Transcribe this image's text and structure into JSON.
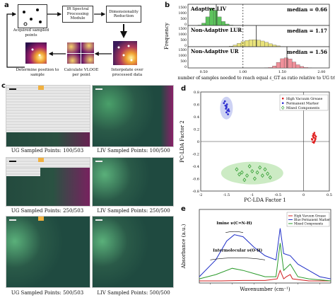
{
  "panel_a": {
    "label": "a",
    "boxes": {
      "ir_module": "IR Spectral Processing Module",
      "dim_reduction": "Dimensionality Reduction"
    },
    "captions": {
      "acquired": "Acquired sampled points",
      "interpolate": "Interpolate over processed data",
      "calculate": "Calculate VLOOE per point",
      "determine": "Determine position to sample"
    }
  },
  "panel_b": {
    "label": "b",
    "ylabel": "Frequency",
    "xlabel": "number of samples needed to reach equal ε_GT as ratio relative to UG trial",
    "xtick_labels": [
      "0.50",
      "1.00",
      "1.50",
      "2.00"
    ],
    "rows": [
      {
        "name": "Adaptive LIV",
        "median_text": "median = 0.66",
        "yticks": [
          "1500",
          "1000",
          "500",
          "0"
        ],
        "color": "#5cc45c"
      },
      {
        "name": "Non-Adaptive LUR",
        "median_text": "median = 1.17",
        "yticks": [
          "1500",
          "1000",
          "500",
          "0"
        ],
        "color": "#e8e27a"
      },
      {
        "name": "Non-Adaptive UR",
        "median_text": "median = 1.56",
        "yticks": [
          "1500",
          "1000",
          "500",
          "0"
        ],
        "color": "#f0909a"
      }
    ]
  },
  "panel_c": {
    "label": "c",
    "captions": [
      "UG Sampled Points: 100/503",
      "LIV Sampled Points: 100/500",
      "UG Sampled Points: 250/503",
      "LIV Sampled Points: 250/500",
      "UG Sampled Points: 500/503",
      "LIV Sampled Points: 500/500"
    ]
  },
  "panel_d": {
    "label": "d",
    "xlabel": "PC-LDA Factor 1",
    "ylabel": "PC-LDA Factor 2",
    "xticks": [
      "-2",
      "-1.5",
      "-1",
      "-0.5",
      "0",
      "0.5"
    ],
    "yticks": [
      "0.8",
      "0.6",
      "0.4",
      "0.2",
      "0",
      "-0.2",
      "-0.4",
      "-0.6",
      "-0.8"
    ],
    "legend": [
      "High Vacuum Grease",
      "Permanent Marker",
      "Mixed Components"
    ],
    "colors": {
      "grease": "#e02020",
      "marker": "#3030d0",
      "mixed": "#2a9a2a"
    }
  },
  "panel_e": {
    "label": "e",
    "xlabel": "Wavenumber (cm⁻¹)",
    "ylabel": "Absorbance (a.u.)",
    "annotation_imine": "Imine ν(C=N-H)",
    "annotation_inter": "Intermolecular ν(O-H)",
    "legend": [
      "High Vacuum Grease",
      "Blue Permanent Marker",
      "Mixed Components"
    ],
    "colors": {
      "grease": "#d02020",
      "marker": "#2030c8",
      "mixed": "#2a9a2a"
    }
  },
  "chart_data": [
    {
      "type": "bar",
      "title": "",
      "xlabel": "number of samples needed to reach equal ε_GT as ratio relative to UG trial",
      "ylabel": "Frequency",
      "xlim": [
        0.3,
        2.1
      ],
      "ylim": [
        0,
        1500
      ],
      "series": [
        {
          "name": "Adaptive LIV",
          "median": 0.66,
          "x": [
            0.4,
            0.45,
            0.5,
            0.55,
            0.6,
            0.65,
            0.7,
            0.75,
            0.8,
            0.85,
            0.9
          ],
          "values": [
            0,
            30,
            180,
            650,
            1300,
            1150,
            650,
            300,
            110,
            30,
            0
          ]
        },
        {
          "name": "Non-Adaptive LUR",
          "median": 1.17,
          "x": [
            0.8,
            0.85,
            0.9,
            0.95,
            1.0,
            1.05,
            1.1,
            1.15,
            1.2,
            1.25,
            1.3,
            1.35,
            1.4,
            1.45,
            1.5,
            1.55
          ],
          "values": [
            10,
            40,
            120,
            250,
            380,
            470,
            520,
            530,
            500,
            430,
            330,
            220,
            130,
            60,
            20,
            0
          ]
        },
        {
          "name": "Non-Adaptive UR",
          "median": 1.56,
          "x": [
            1.3,
            1.35,
            1.4,
            1.45,
            1.5,
            1.55,
            1.6,
            1.65,
            1.7,
            1.75,
            1.8,
            1.85,
            1.9
          ],
          "values": [
            10,
            40,
            150,
            420,
            700,
            760,
            680,
            450,
            240,
            110,
            40,
            10,
            0
          ]
        }
      ]
    },
    {
      "type": "scatter",
      "title": "",
      "xlabel": "PC-LDA Factor 1",
      "ylabel": "PC-LDA Factor 2",
      "xlim": [
        -2,
        0.5
      ],
      "ylim": [
        -0.8,
        0.8
      ],
      "series": [
        {
          "name": "High Vacuum Grease",
          "x": [
            0.17,
            0.2,
            0.22,
            0.18,
            0.21,
            0.23,
            0.19,
            0.2,
            0.24,
            0.16,
            0.22,
            0.19,
            0.21,
            0.18,
            0.23,
            0.2
          ],
          "y": [
            0.03,
            0.06,
            0.02,
            0.09,
            0.0,
            0.05,
            0.12,
            -0.02,
            0.08,
            0.04,
            0.1,
            0.07,
            0.14,
            -0.01,
            0.04,
            0.11
          ]
        },
        {
          "name": "Permanent Marker",
          "x": [
            -1.55,
            -1.52,
            -1.5,
            -1.48,
            -1.5,
            -1.46,
            -1.53,
            -1.49,
            -1.47,
            -1.51,
            -1.45,
            -1.5
          ],
          "y": [
            0.62,
            0.58,
            0.55,
            0.5,
            0.47,
            0.52,
            0.65,
            0.6,
            0.44,
            0.53,
            0.49,
            0.57
          ]
        },
        {
          "name": "Mixed Components",
          "x": [
            -1.3,
            -1.2,
            -1.1,
            -1.05,
            -0.95,
            -0.9,
            -0.8,
            -0.75,
            -0.7,
            -1.15,
            -1.0,
            -0.85,
            -0.65,
            -1.25
          ],
          "y": [
            -0.45,
            -0.5,
            -0.55,
            -0.4,
            -0.6,
            -0.5,
            -0.55,
            -0.45,
            -0.52,
            -0.62,
            -0.48,
            -0.42,
            -0.58,
            -0.53
          ]
        }
      ]
    },
    {
      "type": "line",
      "title": "",
      "xlabel": "Wavenumber (cm⁻¹)",
      "ylabel": "Absorbance (a.u.)",
      "xlim": [
        3700,
        2500
      ],
      "ylim": [
        0,
        0.35
      ],
      "series": [
        {
          "name": "High Vacuum Grease",
          "x": [
            3700,
            3500,
            3300,
            3100,
            2990,
            2962,
            2930,
            2905,
            2870,
            2850,
            2700,
            2500
          ],
          "y": [
            0.01,
            0.01,
            0.012,
            0.012,
            0.02,
            0.06,
            0.02,
            0.03,
            0.04,
            0.02,
            0.01,
            0.01
          ]
        },
        {
          "name": "Blue Permanent Marker",
          "x": [
            3700,
            3550,
            3450,
            3380,
            3300,
            3200,
            3100,
            3000,
            2962,
            2930,
            2870,
            2800,
            2700,
            2600,
            2500
          ],
          "y": [
            0.03,
            0.11,
            0.2,
            0.23,
            0.22,
            0.17,
            0.13,
            0.11,
            0.26,
            0.14,
            0.13,
            0.09,
            0.06,
            0.03,
            0.02
          ]
        },
        {
          "name": "Mixed Components",
          "x": [
            3700,
            3550,
            3400,
            3300,
            3200,
            3100,
            3000,
            2962,
            2930,
            2870,
            2800,
            2700,
            2500
          ],
          "y": [
            0.02,
            0.04,
            0.07,
            0.06,
            0.045,
            0.03,
            0.03,
            0.19,
            0.06,
            0.09,
            0.03,
            0.02,
            0.01
          ]
        }
      ]
    }
  ]
}
